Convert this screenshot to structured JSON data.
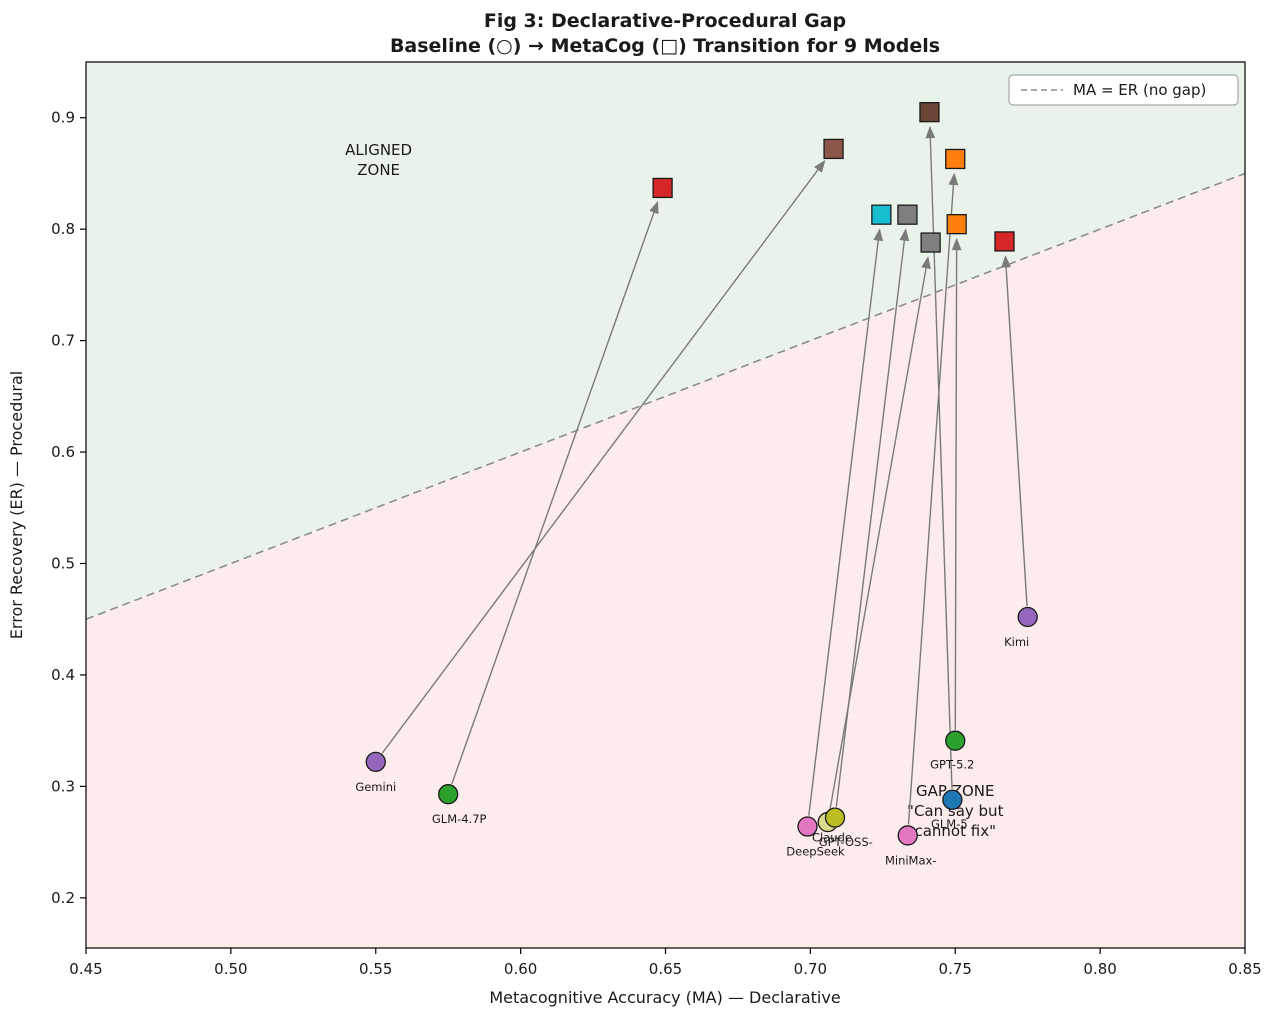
{
  "figure": {
    "title_line1": "Fig 3: Declarative-Procedural Gap",
    "title_line2": "Baseline (○) → MetaCog (□) Transition for 9 Models"
  },
  "chart_data": {
    "type": "scatter",
    "title": "Fig 3: Declarative-Procedural Gap — Baseline (○) → MetaCog (□) Transition for 9 Models",
    "xlabel": "Metacognitive Accuracy (MA) — Declarative",
    "ylabel": "Error Recovery (ER) — Procedural",
    "xlim": [
      0.45,
      0.85
    ],
    "ylim": [
      0.155,
      0.95
    ],
    "x_ticks": [
      0.45,
      0.5,
      0.55,
      0.6,
      0.65,
      0.7,
      0.75,
      0.8,
      0.85
    ],
    "y_ticks": [
      0.2,
      0.3,
      0.4,
      0.5,
      0.6,
      0.7,
      0.8,
      0.9
    ],
    "legend": {
      "position": "upper right",
      "entries": [
        {
          "label": "MA = ER (no gap)",
          "line_style": "dashed",
          "color": "#8c8c8c"
        }
      ]
    },
    "identity_line": {
      "from": [
        0.45,
        0.45
      ],
      "to": [
        0.85,
        0.85
      ],
      "color": "#8c8c8c",
      "style": "dashed"
    },
    "zones": {
      "aligned": {
        "lines": [
          "ALIGNED",
          "ZONE"
        ],
        "fill": "#eaf3ea",
        "text_color": "#7aab7e",
        "label_pos": [
          0.551,
          0.862
        ]
      },
      "gap": {
        "lines": [
          "GAP ZONE",
          "\"Can say but",
          "cannot fix\""
        ],
        "fill": "#fdecec",
        "text_color": "#f08080",
        "label_pos": [
          0.75,
          0.278
        ]
      }
    },
    "series": [
      {
        "name": "Gemini",
        "baseline": [
          0.55,
          0.322
        ],
        "metacog": [
          0.708,
          0.872
        ],
        "baseline_color": "#9467bd",
        "metacog_color": "#8c564b",
        "label_dx": 0,
        "label_dy": 20
      },
      {
        "name": "GLM-4.7P",
        "baseline": [
          0.575,
          0.293
        ],
        "metacog": [
          0.649,
          0.837
        ],
        "baseline_color": "#2ca02c",
        "metacog_color": "#d62728",
        "label_dx": 11,
        "label_dy": 20
      },
      {
        "name": "GPT-OSS-",
        "baseline": [
          0.706,
          0.268
        ],
        "metacog": [
          0.7415,
          0.788
        ],
        "baseline_color": "#dbdb8d",
        "metacog_color": "#7f7f7f",
        "label_dx": 18,
        "label_dy": 15
      },
      {
        "name": "DeepSeek",
        "baseline": [
          0.699,
          0.264
        ],
        "metacog": [
          0.7245,
          0.813
        ],
        "baseline_color": "#e377c2",
        "metacog_color": "#17becf",
        "label_dx": 8,
        "label_dy": 20
      },
      {
        "name": "Claude",
        "baseline": [
          0.7085,
          0.272
        ],
        "metacog": [
          0.7335,
          0.813
        ],
        "baseline_color": "#bcbd22",
        "metacog_color": "#7f7f7f",
        "label_dx": -3,
        "label_dy": 15
      },
      {
        "name": "MiniMax-",
        "baseline": [
          0.7336,
          0.256
        ],
        "metacog": [
          0.75,
          0.863
        ],
        "baseline_color": "#e377c2",
        "metacog_color": "#ff7f0e",
        "label_dx": 3,
        "label_dy": 20
      },
      {
        "name": "GLM-5",
        "baseline": [
          0.749,
          0.288
        ],
        "metacog": [
          0.7411,
          0.905
        ],
        "baseline_color": "#1f77b4",
        "metacog_color": "#6b4536",
        "label_dx": -3,
        "label_dy": 19
      },
      {
        "name": "GPT-5.2",
        "baseline": [
          0.75,
          0.341
        ],
        "metacog": [
          0.7505,
          0.8045
        ],
        "baseline_color": "#2ca02c",
        "metacog_color": "#ff7f0e",
        "label_dx": -3,
        "label_dy": 19
      },
      {
        "name": "Kimi",
        "baseline": [
          0.775,
          0.452
        ],
        "metacog": [
          0.767,
          0.789
        ],
        "baseline_color": "#9467bd",
        "metacog_color": "#d62728",
        "label_dx": -11,
        "label_dy": 20
      }
    ]
  }
}
